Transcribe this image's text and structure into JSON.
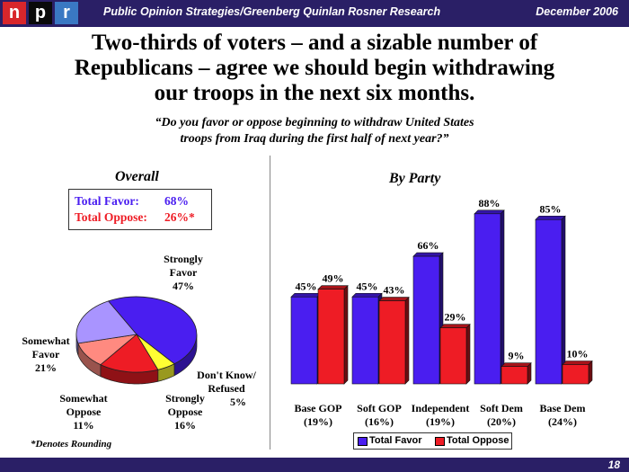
{
  "header": {
    "logo_letters": [
      "n",
      "p",
      "r"
    ],
    "source": "Public Opinion Strategies/Greenberg Quinlan Rosner Research",
    "date": "December 2006"
  },
  "title_lines": [
    "Two-thirds of voters – and a sizable number of",
    "Republicans – agree we should begin withdrawing",
    "our troops in the next six months."
  ],
  "question_lines": [
    "“Do you favor or oppose beginning to withdraw United States",
    "troops from Iraq during the first half of next year?”"
  ],
  "overall": {
    "heading": "Overall",
    "total_favor_label": "Total Favor:",
    "total_favor_value": "68%",
    "total_oppose_label": "Total Oppose:",
    "total_oppose_value": "26%*"
  },
  "by_party_heading": "By Party",
  "footnote": "*Denotes Rounding",
  "page_number": "18",
  "colors": {
    "header_bg": "#2a1f66",
    "favor": "#4a1ef0",
    "oppose": "#ee1c25",
    "npr_n": "#d8262b",
    "npr_p": "#0a0a0a",
    "npr_r": "#3a78c3"
  },
  "chart_data": [
    {
      "type": "pie",
      "title": "Overall",
      "slices": [
        {
          "label_lines": [
            "Strongly",
            "Favor",
            "47%"
          ],
          "value": 47,
          "color": "#4a1ef0"
        },
        {
          "label_lines": [
            "Don't Know/",
            "Refused",
            "5%"
          ],
          "value": 5,
          "color": "#ffff33"
        },
        {
          "label_lines": [
            "Strongly",
            "Oppose",
            "16%"
          ],
          "value": 16,
          "color": "#ee1c25"
        },
        {
          "label_lines": [
            "Somewhat",
            "Oppose",
            "11%"
          ],
          "value": 11,
          "color": "#ff8a80"
        },
        {
          "label_lines": [
            "Somewhat",
            "Favor",
            "21%"
          ],
          "value": 21,
          "color": "#a994ff"
        }
      ]
    },
    {
      "type": "bar",
      "title": "By Party",
      "categories": [
        "Base GOP",
        "Soft GOP",
        "Independent",
        "Soft Dem",
        "Base Dem"
      ],
      "category_shares": [
        "(19%)",
        "(16%)",
        "(19%)",
        "(20%)",
        "(24%)"
      ],
      "series": [
        {
          "name": "Total Favor",
          "values": [
            45,
            45,
            66,
            88,
            85
          ],
          "labels": [
            "45%",
            "45%",
            "66%",
            "88%",
            "85%"
          ],
          "color": "#4a1ef0"
        },
        {
          "name": "Total Oppose",
          "values": [
            49,
            43,
            29,
            9,
            10
          ],
          "labels": [
            "49%",
            "43%",
            "29%",
            "9%",
            "10%"
          ],
          "color": "#ee1c25"
        }
      ],
      "ylim": [
        0,
        100
      ],
      "legend_position": "bottom"
    }
  ]
}
